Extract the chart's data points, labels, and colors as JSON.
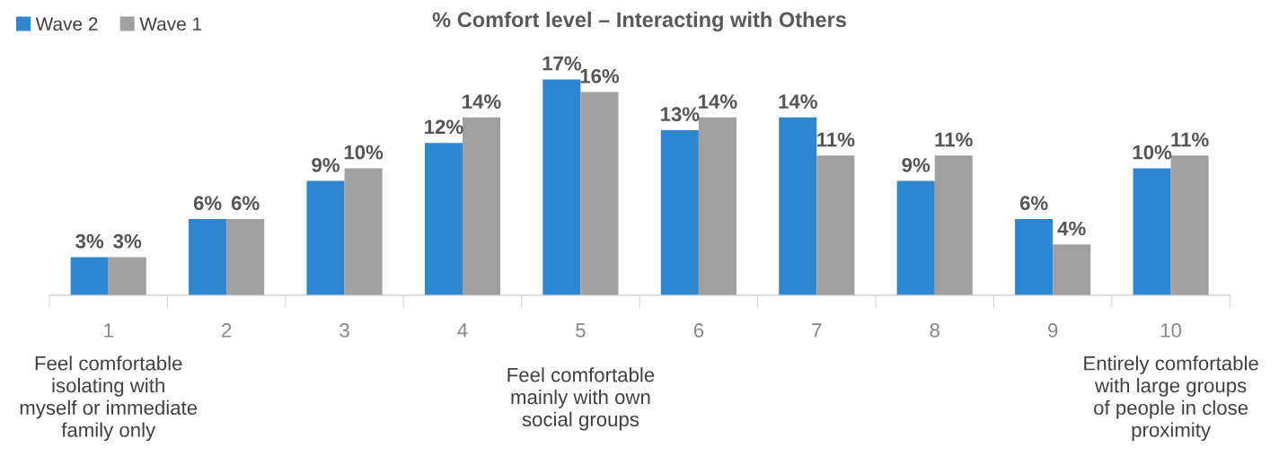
{
  "chart_data": {
    "type": "bar",
    "title": "% Comfort level – Interacting with Others",
    "categories": [
      "1",
      "2",
      "3",
      "4",
      "5",
      "6",
      "7",
      "8",
      "9",
      "10"
    ],
    "series": [
      {
        "name": "Wave 2",
        "color": "#2e86d0",
        "values": [
          3,
          6,
          9,
          12,
          17,
          13,
          14,
          9,
          6,
          10
        ],
        "value_labels": [
          "3%",
          "6%",
          "9%",
          "12%",
          "17%",
          "13%",
          "14%",
          "9%",
          "6%",
          "10%"
        ]
      },
      {
        "name": "Wave 1",
        "color": "#a0a0a0",
        "values": [
          3,
          6,
          10,
          14,
          16,
          14,
          11,
          11,
          4,
          11
        ],
        "value_labels": [
          "3%",
          "6%",
          "10%",
          "14%",
          "16%",
          "14%",
          "11%",
          "11%",
          "4%",
          "11%"
        ]
      }
    ],
    "legend": "top left",
    "grid": false,
    "annotations": [
      "Feel comfortable\nisolating with\nmyself or immediate\nfamily only",
      "Feel comfortable\nmainly with own\nsocial groups",
      "Entirely comfortable\nwith large groups\nof people in close\nproximity"
    ]
  }
}
